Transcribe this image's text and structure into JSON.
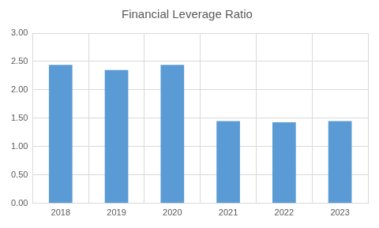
{
  "chart_data": {
    "type": "bar",
    "title": "Financial Leverage Ratio",
    "categories": [
      "2018",
      "2019",
      "2020",
      "2021",
      "2022",
      "2023"
    ],
    "values": [
      2.44,
      2.35,
      2.44,
      1.45,
      1.43,
      1.45
    ],
    "color": "#5b9bd5",
    "ylim": [
      0,
      3
    ],
    "yticks": [
      {
        "value": 0,
        "label": "0.00"
      },
      {
        "value": 0.5,
        "label": "0.50"
      },
      {
        "value": 1,
        "label": "1.00"
      },
      {
        "value": 1.5,
        "label": "1.50"
      },
      {
        "value": 2,
        "label": "2.00"
      },
      {
        "value": 2.5,
        "label": "2.50"
      },
      {
        "value": 3,
        "label": "3.00"
      }
    ],
    "grid": true
  }
}
